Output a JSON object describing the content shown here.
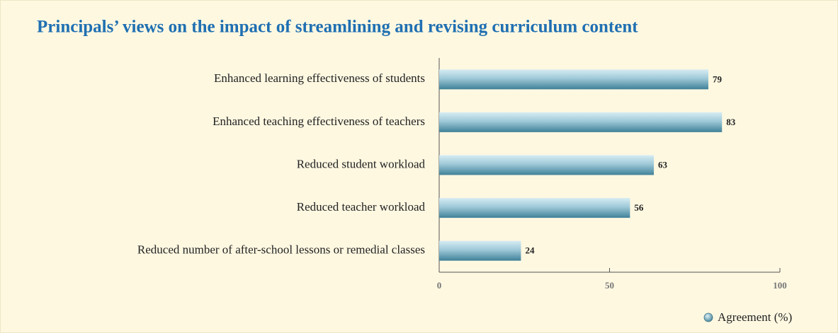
{
  "chart_data": {
    "type": "bar",
    "orientation": "horizontal",
    "title": "Principals’ views on the impact of streamlining and revising curriculum content",
    "categories": [
      "Enhanced learning effectiveness of students",
      "Enhanced teaching effectiveness of teachers",
      "Reduced student workload",
      "Reduced teacher workload",
      "Reduced number of after-school lessons or remedial classes"
    ],
    "series": [
      {
        "name": "Agreement (%)",
        "color": "#3f8198",
        "values": [
          79,
          83,
          63,
          56,
          24
        ]
      }
    ],
    "xlim": [
      0,
      100
    ],
    "xticks": [
      0,
      50,
      100
    ],
    "legend": "bottom-right"
  }
}
